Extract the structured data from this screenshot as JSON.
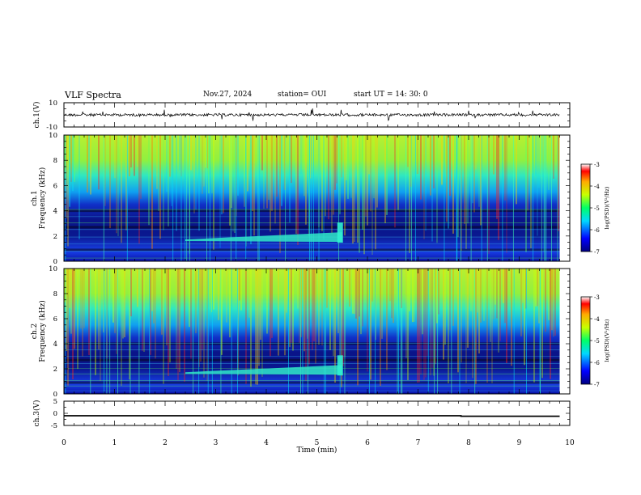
{
  "header": {
    "title": "VLF Spectra",
    "date": "Nov.27, 2024",
    "station": "station= OUI",
    "start_ut": "start  UT =   14: 30: 0"
  },
  "chart_data": [
    {
      "type": "line",
      "name": "waveform-ch1",
      "ylabel": "ch.1(V)",
      "ylim": [
        -10,
        10
      ],
      "yticks": [
        "10",
        "-10"
      ],
      "xlim": [
        0,
        10
      ],
      "baseline": 0,
      "line_color": "#000000"
    },
    {
      "type": "heatmap",
      "name": "spectrogram-ch1",
      "ylabel_lines": [
        "ch.1",
        "Frequency (kHz)"
      ],
      "ylim": [
        0,
        10
      ],
      "yticks": [
        "0",
        "2",
        "4",
        "6",
        "8",
        "10"
      ],
      "xlim": [
        0,
        10
      ],
      "colorbar": {
        "label": "log(PSD)(V²/Hz)",
        "range": [
          -7,
          -3
        ],
        "ticks": [
          "-3",
          "-4",
          "-5",
          "-6",
          "-7"
        ]
      },
      "features": [
        {
          "label": "continuous narrowband emission",
          "freq_khz": [
            1.6,
            2.3
          ],
          "time_min": [
            2.4,
            5.5
          ]
        }
      ]
    },
    {
      "type": "heatmap",
      "name": "spectrogram-ch2",
      "ylabel_lines": [
        "ch.2",
        "Frequency (kHz)"
      ],
      "ylim": [
        0,
        10
      ],
      "yticks": [
        "0",
        "2",
        "4",
        "6",
        "8",
        "10"
      ],
      "xlim": [
        0,
        10
      ],
      "colorbar": {
        "label": "log(PSD)(V²/Hz)",
        "range": [
          -7,
          -3
        ],
        "ticks": [
          "-3",
          "-4",
          "-5",
          "-6",
          "-7"
        ]
      },
      "features": [
        {
          "label": "continuous narrowband emission",
          "freq_khz": [
            1.6,
            2.3
          ],
          "time_min": [
            2.4,
            5.5
          ]
        }
      ]
    },
    {
      "type": "line",
      "name": "waveform-ch3",
      "ylabel": "ch.3(V)",
      "ylim": [
        -5,
        5
      ],
      "yticks": [
        "5",
        "0",
        "-5"
      ],
      "xlim": [
        0,
        10
      ],
      "x": [
        0,
        7.85,
        7.85,
        9.8
      ],
      "y": [
        -1.0,
        -1.0,
        -1.2,
        -1.2
      ],
      "xlabel": "Time (min)",
      "xticks": [
        "0",
        "1",
        "2",
        "3",
        "4",
        "5",
        "6",
        "7",
        "8",
        "9",
        "10"
      ]
    }
  ]
}
